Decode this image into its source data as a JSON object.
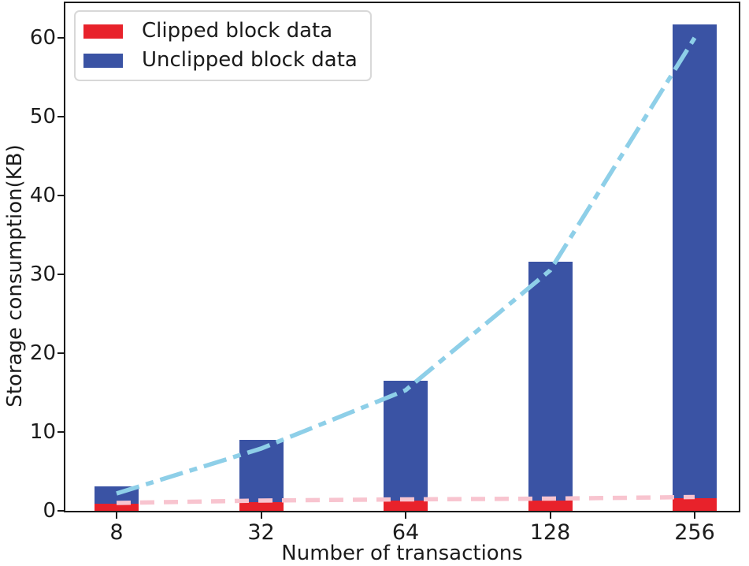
{
  "figure": {
    "xlabel": "Number of transactions",
    "ylabel": "Storage consumption(KB)"
  },
  "legend": {
    "items": [
      {
        "label": "Clipped block data",
        "color": "#e8222b"
      },
      {
        "label": "Unclipped block data",
        "color": "#3a53a4"
      }
    ]
  },
  "chart_data": {
    "type": "bar",
    "title": "",
    "xlabel": "Number of transactions",
    "ylabel": "Storage consumption(KB)",
    "categories": [
      "8",
      "32",
      "64",
      "128",
      "256"
    ],
    "series": [
      {
        "name": "Clipped block data",
        "kind": "bar",
        "color": "#e8222b",
        "values": [
          0.9,
          1.1,
          1.3,
          1.3,
          1.6
        ]
      },
      {
        "name": "Unclipped block data",
        "kind": "bar",
        "color": "#3a53a4",
        "values": [
          3.1,
          9.0,
          16.5,
          31.6,
          61.7
        ]
      },
      {
        "name": "Unclipped block data trend",
        "kind": "line",
        "linestyle": "dashdot",
        "color": "#8ecfe8",
        "values": [
          2.2,
          7.9,
          15.3,
          30.5,
          60.0
        ]
      },
      {
        "name": "Clipped block data trend",
        "kind": "line",
        "linestyle": "dashed",
        "color": "#f8c4cf",
        "values": [
          1.0,
          1.3,
          1.45,
          1.55,
          1.75
        ]
      }
    ],
    "yticks": [
      0,
      10,
      20,
      30,
      40,
      50,
      60
    ],
    "ylim": [
      0,
      64.4
    ],
    "xlim_categories_padded": true,
    "grid": false,
    "legend_position": "upper-left"
  }
}
